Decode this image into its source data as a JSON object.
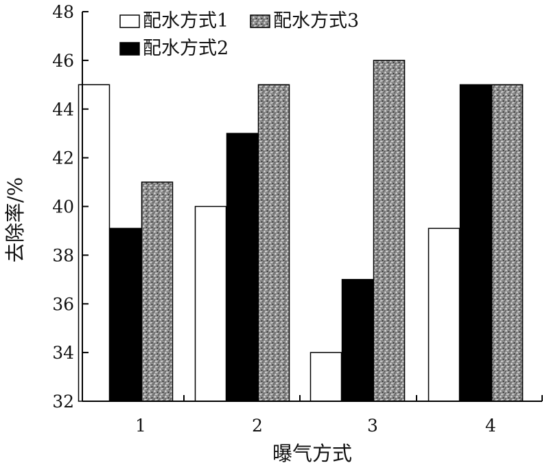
{
  "chart_data": {
    "type": "bar",
    "title": "",
    "xlabel": "曝气方式",
    "ylabel": "去除率/%",
    "categories": [
      "1",
      "2",
      "3",
      "4"
    ],
    "ylim": [
      32,
      48
    ],
    "yticks": [
      "32",
      "34",
      "36",
      "38",
      "40",
      "42",
      "44",
      "46",
      "48"
    ],
    "series": [
      {
        "name": "配水方式1",
        "values": [
          45.0,
          40.0,
          34.0,
          39.1
        ],
        "fill": "white"
      },
      {
        "name": "配水方式2",
        "values": [
          39.1,
          43.0,
          37.0,
          45.0
        ],
        "fill": "black"
      },
      {
        "name": "配水方式3",
        "values": [
          41.0,
          45.0,
          46.0,
          45.0
        ],
        "fill": "textured-gray"
      }
    ],
    "legend_position": "top-left",
    "grid": false,
    "colors": {
      "series1": "#ffffff",
      "series2": "#000000",
      "series3": "#888888",
      "stroke": "#000000"
    }
  }
}
